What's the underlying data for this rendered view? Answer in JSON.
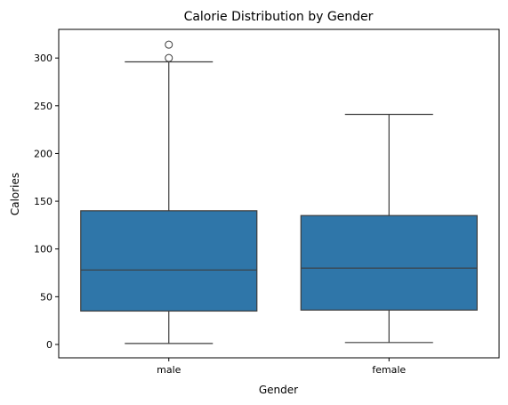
{
  "chart_data": {
    "type": "box",
    "title": "Calorie Distribution by Gender",
    "xlabel": "Gender",
    "ylabel": "Calories",
    "categories": [
      "male",
      "female"
    ],
    "ylim": [
      -14,
      330
    ],
    "yticks": [
      0,
      50,
      100,
      150,
      200,
      250,
      300
    ],
    "grid": false,
    "color": "#2f76a9",
    "boxes": [
      {
        "category": "male",
        "whisker_low": 1,
        "q1": 35,
        "median": 78,
        "q3": 140,
        "whisker_high": 296,
        "outliers": [
          300,
          314
        ]
      },
      {
        "category": "female",
        "whisker_low": 2,
        "q1": 36,
        "median": 80,
        "q3": 135,
        "whisker_high": 241,
        "outliers": []
      }
    ]
  }
}
